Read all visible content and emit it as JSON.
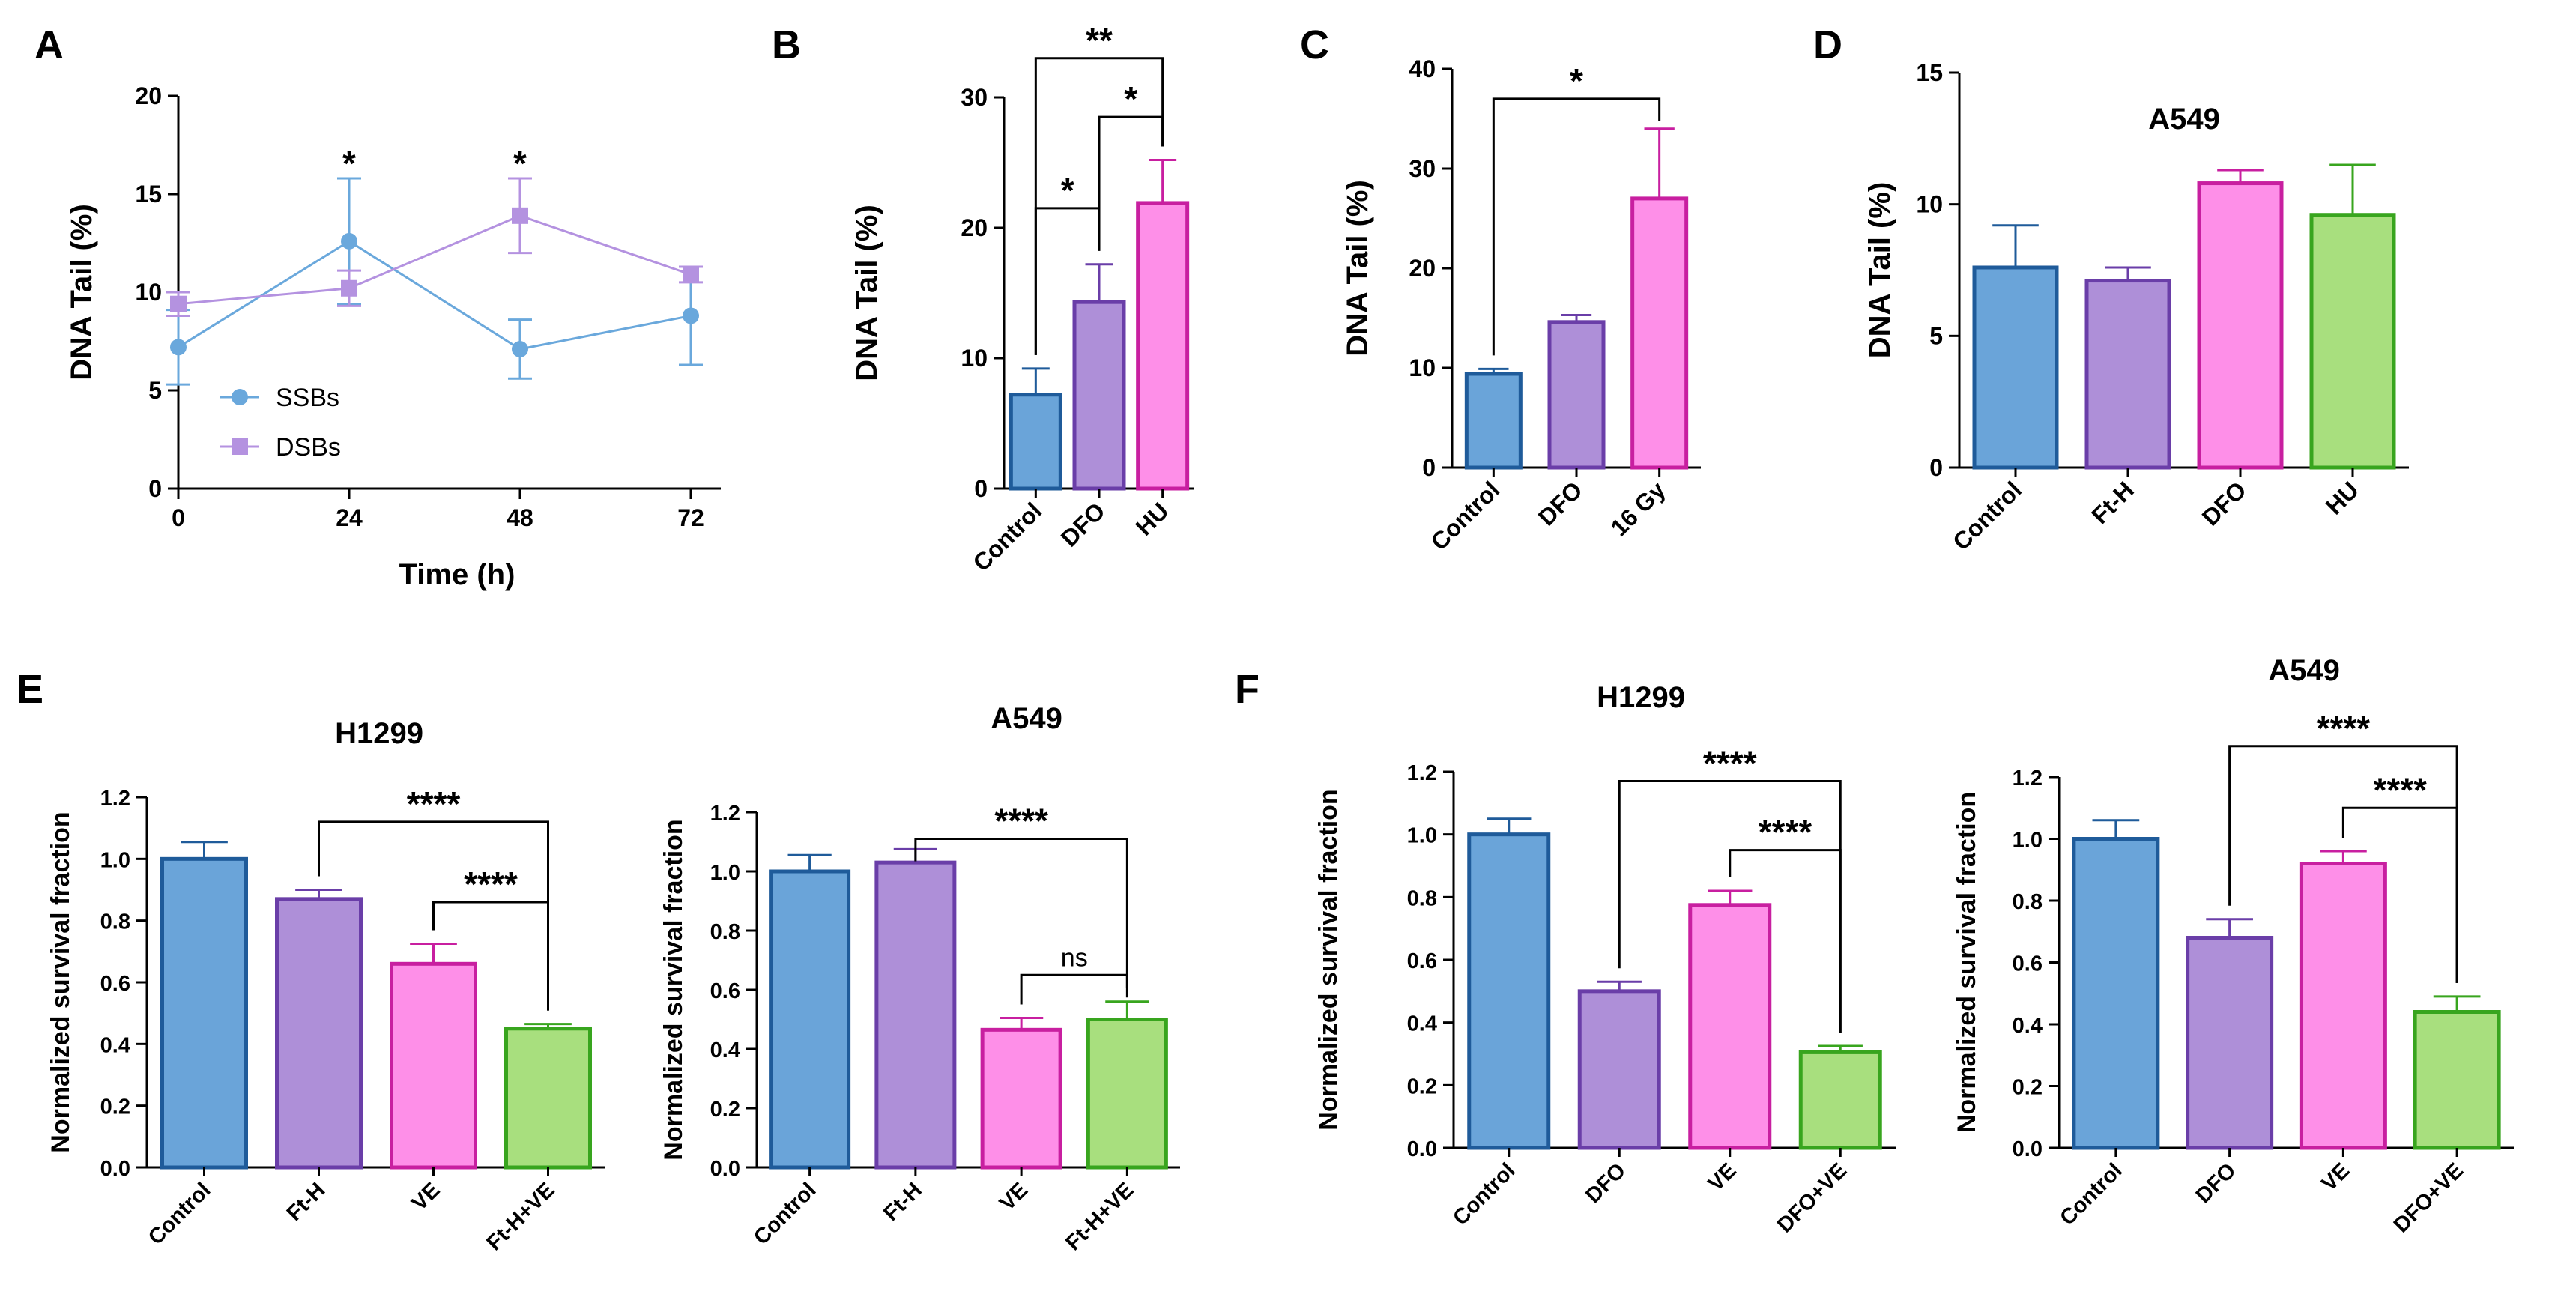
{
  "colors": {
    "blue": {
      "fill": "#6aa4d9",
      "stroke": "#1f5b9a"
    },
    "purple": {
      "fill": "#ae8fd8",
      "stroke": "#6a3ea8"
    },
    "pink": {
      "fill": "#fe8fe8",
      "stroke": "#c81fa0"
    },
    "green": {
      "fill": "#a8df7e",
      "stroke": "#38a51e"
    },
    "ssb": "#6aa8dc",
    "dsb": "#b492e0"
  },
  "chart_data": [
    {
      "id": "A",
      "type": "line",
      "panel_label": "A",
      "xlabel": "Time (h)",
      "ylabel": "DNA Tail (%)",
      "ylim": [
        0,
        20
      ],
      "yticks": [
        0,
        5,
        10,
        15,
        20
      ],
      "xlim": [
        0,
        72
      ],
      "xticks": [
        0,
        24,
        48,
        72
      ],
      "legend_position": "lower-left",
      "series": [
        {
          "name": "SSBs",
          "color": "ssb",
          "marker": "circle",
          "x": [
            0,
            24,
            48,
            72
          ],
          "values": [
            7.2,
            12.6,
            7.1,
            8.8
          ],
          "errors": [
            1.9,
            3.2,
            1.5,
            2.5
          ]
        },
        {
          "name": "DSBs",
          "color": "dsb",
          "marker": "square",
          "x": [
            0,
            24,
            48,
            72
          ],
          "values": [
            9.4,
            10.2,
            13.9,
            10.9
          ],
          "errors": [
            0.6,
            0.9,
            1.9,
            0.4
          ]
        }
      ],
      "annotations": [
        {
          "x": 24,
          "text": "*"
        },
        {
          "x": 48,
          "text": "*"
        }
      ]
    },
    {
      "id": "B",
      "type": "bar",
      "panel_label": "B",
      "ylabel": "DNA Tail (%)",
      "ylim": [
        0,
        30
      ],
      "yticks": [
        0,
        10,
        20,
        30
      ],
      "categories": [
        "Control",
        "DFO",
        "HU"
      ],
      "colors": [
        "blue",
        "purple",
        "pink"
      ],
      "values": [
        7.2,
        14.3,
        21.9
      ],
      "errors": [
        2.0,
        2.9,
        3.3
      ],
      "brackets": [
        {
          "from": 0,
          "to": 1,
          "at": 21.5,
          "text": "*"
        },
        {
          "from": 1,
          "to": 2,
          "at": 28.5,
          "text": "*"
        },
        {
          "from": 0,
          "to": 2,
          "at": 33.0,
          "text": "**"
        }
      ]
    },
    {
      "id": "C",
      "type": "bar",
      "panel_label": "C",
      "ylabel": "DNA Tail (%)",
      "ylim": [
        0,
        40
      ],
      "yticks": [
        0,
        10,
        20,
        30,
        40
      ],
      "categories": [
        "Control",
        "DFO",
        "16 Gy"
      ],
      "colors": [
        "blue",
        "purple",
        "pink"
      ],
      "values": [
        9.4,
        14.6,
        27.0
      ],
      "errors": [
        0.5,
        0.7,
        7.0
      ],
      "brackets": [
        {
          "from": 0,
          "to": 2,
          "at": 37.0,
          "text": "*"
        }
      ]
    },
    {
      "id": "D",
      "type": "bar",
      "panel_label": "D",
      "title": "A549",
      "ylabel": "DNA Tail (%)",
      "ylim": [
        0,
        15
      ],
      "yticks": [
        0,
        5,
        10,
        15
      ],
      "categories": [
        "Control",
        "Ft-H",
        "DFO",
        "HU"
      ],
      "colors": [
        "blue",
        "purple",
        "pink",
        "green"
      ],
      "values": [
        7.6,
        7.1,
        10.8,
        9.6
      ],
      "errors": [
        1.6,
        0.5,
        0.5,
        1.9
      ],
      "brackets": []
    },
    {
      "id": "E1",
      "type": "bar",
      "panel_label": "E",
      "title": "H1299",
      "ylabel": "Normalized survival fraction",
      "ylim": [
        0,
        1.2
      ],
      "yticks": [
        0.0,
        0.2,
        0.4,
        0.6,
        0.8,
        1.0,
        1.2
      ],
      "categories": [
        "Control",
        "Ft-H",
        "VE",
        "Ft-H+VE"
      ],
      "colors": [
        "blue",
        "purple",
        "pink",
        "green"
      ],
      "values": [
        1.0,
        0.87,
        0.66,
        0.45
      ],
      "errors": [
        0.055,
        0.03,
        0.065,
        0.015
      ],
      "brackets": [
        {
          "from": 2,
          "to": 3,
          "at": 0.86,
          "text": "****"
        },
        {
          "from": 1,
          "to": 3,
          "at": 1.12,
          "text": "****"
        }
      ]
    },
    {
      "id": "E2",
      "type": "bar",
      "title": "A549",
      "ylabel": "Normalized survival fraction",
      "ylim": [
        0,
        1.2
      ],
      "yticks": [
        0.0,
        0.2,
        0.4,
        0.6,
        0.8,
        1.0,
        1.2
      ],
      "categories": [
        "Control",
        "Ft-H",
        "VE",
        "Ft-H+VE"
      ],
      "colors": [
        "blue",
        "purple",
        "pink",
        "green"
      ],
      "values": [
        1.0,
        1.03,
        0.465,
        0.5
      ],
      "errors": [
        0.055,
        0.045,
        0.04,
        0.06
      ],
      "brackets": [
        {
          "from": 2,
          "to": 3,
          "at": 0.65,
          "text": "ns"
        },
        {
          "from": 1,
          "to": 3,
          "at": 1.11,
          "text": "****"
        }
      ]
    },
    {
      "id": "F1",
      "type": "bar",
      "panel_label": "F",
      "title": "H1299",
      "ylabel": "Normalized survival fraction",
      "ylim": [
        0,
        1.2
      ],
      "yticks": [
        0.0,
        0.2,
        0.4,
        0.6,
        0.8,
        1.0,
        1.2
      ],
      "categories": [
        "Control",
        "DFO",
        "VE",
        "DFO+VE"
      ],
      "colors": [
        "blue",
        "purple",
        "pink",
        "green"
      ],
      "values": [
        1.0,
        0.5,
        0.775,
        0.305
      ],
      "errors": [
        0.05,
        0.03,
        0.045,
        0.02
      ],
      "brackets": [
        {
          "from": 2,
          "to": 3,
          "at": 0.95,
          "text": "****"
        },
        {
          "from": 1,
          "to": 3,
          "at": 1.17,
          "text": "****"
        }
      ]
    },
    {
      "id": "F2",
      "type": "bar",
      "title": "A549",
      "ylabel": "Normalized survival fraction",
      "ylim": [
        0,
        1.2
      ],
      "yticks": [
        0.0,
        0.2,
        0.4,
        0.6,
        0.8,
        1.0,
        1.2
      ],
      "categories": [
        "Control",
        "DFO",
        "VE",
        "DFO+VE"
      ],
      "colors": [
        "blue",
        "purple",
        "pink",
        "green"
      ],
      "values": [
        1.0,
        0.68,
        0.92,
        0.44
      ],
      "errors": [
        0.06,
        0.06,
        0.04,
        0.05
      ],
      "brackets": [
        {
          "from": 2,
          "to": 3,
          "at": 1.1,
          "text": "****"
        },
        {
          "from": 1,
          "to": 3,
          "at": 1.3,
          "text": "****"
        }
      ]
    }
  ]
}
